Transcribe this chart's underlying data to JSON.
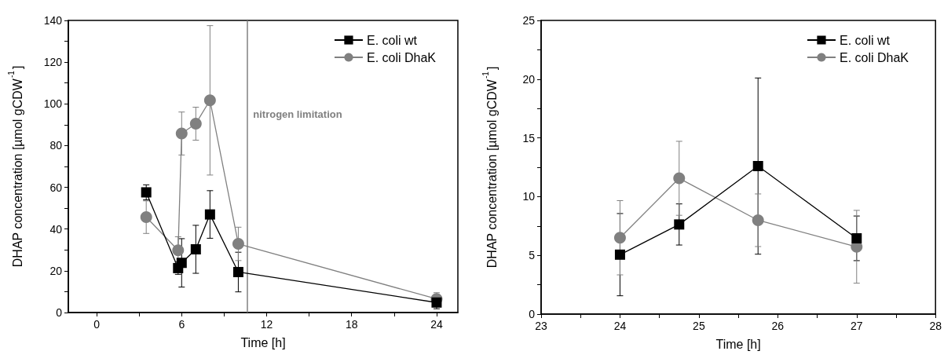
{
  "chart_data": [
    {
      "type": "line",
      "xlabel": "Time [h]",
      "ylabel": "DHAP concentration [µmol gCDW$^{-1}$]",
      "xlim": [
        -2,
        25.5
      ],
      "xticks": [
        0,
        {
          "value": 3,
          "label": null
        },
        6,
        {
          "value": 9,
          "label": null
        },
        12,
        {
          "value": 15,
          "label": null
        },
        18,
        {
          "value": 21,
          "label": null
        },
        24
      ],
      "ylim": [
        0,
        140
      ],
      "yticks": [
        0,
        {
          "value": 10,
          "label": null
        },
        20,
        {
          "value": 30,
          "label": null
        },
        40,
        {
          "value": 50,
          "label": null
        },
        60,
        {
          "value": 70,
          "label": null
        },
        80,
        {
          "value": 90,
          "label": null
        },
        100,
        {
          "value": 110,
          "label": null
        },
        120,
        {
          "value": 130,
          "label": null
        },
        140
      ],
      "grid": false,
      "legend": "top right",
      "line_style": "solid",
      "ref_lines": [
        {
          "axis": "x",
          "value": 10.6,
          "label": "nitrogen limitation",
          "color": "#808080"
        }
      ],
      "series": [
        {
          "name": "E. coli wt",
          "color": "#000000",
          "marker": "square",
          "x": [
            3.5,
            5.75,
            6,
            7,
            8,
            10,
            24
          ],
          "values": [
            57.6,
            21.3,
            23.8,
            30.3,
            47,
            19.4,
            4.8
          ],
          "errors": [
            3.6,
            3,
            11.6,
            11.5,
            11.4,
            9.5,
            3
          ]
        },
        {
          "name": "E. coli DhaK",
          "color": "#808080",
          "marker": "circle",
          "x": [
            3.5,
            5.75,
            6,
            7,
            8,
            10,
            24
          ],
          "values": [
            45.7,
            29.8,
            85.8,
            90.5,
            101.7,
            32.9,
            6.5
          ],
          "errors": [
            7.8,
            6.5,
            10.3,
            7.9,
            35.8,
            8,
            3
          ]
        }
      ]
    },
    {
      "type": "line",
      "xlabel": "Time [h]",
      "ylabel": "DHAP concentration [µmol gCDW$^{-1}$]",
      "xlim": [
        23,
        28
      ],
      "xticks": [
        23,
        {
          "value": 23.5,
          "label": null
        },
        24,
        {
          "value": 24.5,
          "label": null
        },
        25,
        {
          "value": 25.5,
          "label": null
        },
        26,
        {
          "value": 26.5,
          "label": null
        },
        27,
        {
          "value": 27.5,
          "label": null
        },
        28
      ],
      "ylim": [
        0,
        25
      ],
      "yticks": [
        0,
        {
          "value": 2.5,
          "label": null
        },
        5,
        {
          "value": 7.5,
          "label": null
        },
        10,
        {
          "value": 12.5,
          "label": null
        },
        15,
        {
          "value": 17.5,
          "label": null
        },
        20,
        {
          "value": 22.5,
          "label": null
        },
        25
      ],
      "grid": false,
      "legend": "top right",
      "line_style": "solid",
      "series": [
        {
          "name": "E. coli wt",
          "color": "#000000",
          "marker": "square",
          "x": [
            24,
            24.75,
            25.75,
            27
          ],
          "values": [
            5.06,
            7.63,
            12.6,
            6.45
          ],
          "errors": [
            3.5,
            1.75,
            7.5,
            1.9
          ]
        },
        {
          "name": "E. coli DhaK",
          "color": "#808080",
          "marker": "circle",
          "x": [
            24,
            24.75,
            25.75,
            27
          ],
          "values": [
            6.5,
            11.56,
            7.99,
            5.73
          ],
          "errors": [
            3.16,
            3.15,
            2.24,
            3.1
          ]
        }
      ]
    }
  ]
}
